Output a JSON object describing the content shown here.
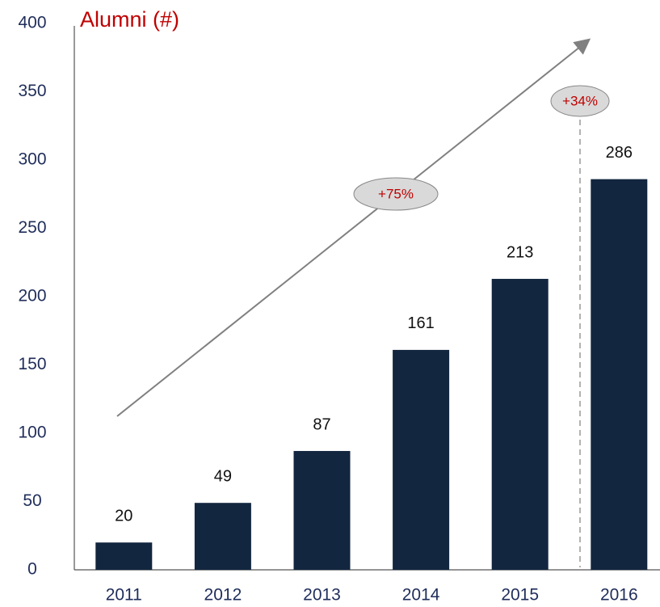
{
  "chart_data": {
    "type": "bar",
    "ylabel": "Alumni (#)",
    "categories": [
      "2011",
      "2012",
      "2013",
      "2014",
      "2015",
      "2016"
    ],
    "values": [
      20,
      49,
      87,
      161,
      213,
      286
    ],
    "color": "#13263f",
    "ylim": [
      0,
      400
    ],
    "yticks": [
      0,
      50,
      100,
      150,
      200,
      250,
      300,
      350,
      400
    ],
    "grid": false,
    "annotations": [
      "+75%",
      "+34%"
    ]
  }
}
